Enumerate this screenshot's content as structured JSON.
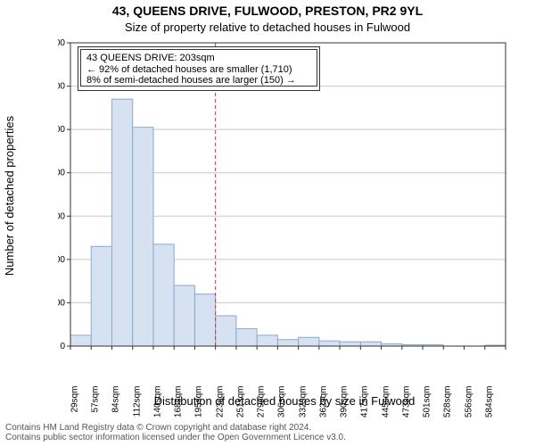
{
  "title_line1": "43, QUEENS DRIVE, FULWOOD, PRESTON, PR2 9YL",
  "title_line2": "Size of property relative to detached houses in Fulwood",
  "ylabel": "Number of detached properties",
  "xlabel": "Distribution of detached houses by size in Fulwood",
  "footer_line1": "Contains HM Land Registry data © Crown copyright and database right 2024.",
  "footer_line2": "Contains public sector information licensed under the Open Government Licence v3.0.",
  "infobox": {
    "line1": "43 QUEENS DRIVE: 203sqm",
    "line2": "← 92% of detached houses are smaller (1,710)",
    "line3": "8% of semi-detached houses are larger (150) →"
  },
  "chart": {
    "type": "histogram",
    "x_categories": [
      "29sqm",
      "57sqm",
      "84sqm",
      "112sqm",
      "140sqm",
      "168sqm",
      "195sqm",
      "223sqm",
      "251sqm",
      "279sqm",
      "306sqm",
      "332sqm",
      "362sqm",
      "390sqm",
      "417sqm",
      "445sqm",
      "473sqm",
      "501sqm",
      "528sqm",
      "556sqm",
      "584sqm"
    ],
    "values": [
      25,
      230,
      570,
      505,
      235,
      140,
      120,
      70,
      40,
      25,
      15,
      20,
      12,
      10,
      10,
      5,
      3,
      3,
      0,
      0,
      2
    ],
    "ylim": [
      0,
      700
    ],
    "ytick_step": 100,
    "marker_line_at_bin_index": 6,
    "bar_fill": "#d6e2f2",
    "bar_stroke": "#8aa8cb",
    "axis_color": "#333333",
    "grid_color": "#c9c9c9",
    "background_color": "#ffffff",
    "marker_line_color": "#cc3333",
    "tick_font_size": 10,
    "label_font_size": 13,
    "title_font_size": 14
  }
}
